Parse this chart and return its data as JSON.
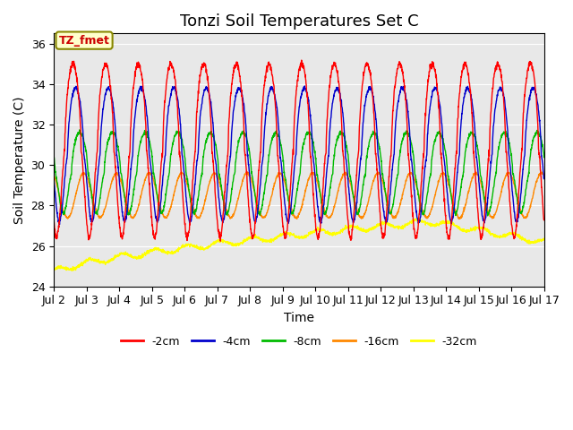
{
  "title": "Tonzi Soil Temperatures Set C",
  "xlabel": "Time",
  "ylabel": "Soil Temperature (C)",
  "ylim": [
    24,
    36.5
  ],
  "xlim": [
    0,
    15
  ],
  "xtick_labels": [
    "Jul 2",
    "Jul 3",
    "Jul 4",
    "Jul 5",
    "Jul 6",
    "Jul 7",
    "Jul 8",
    "Jul 9",
    "Jul 10",
    "Jul 11",
    "Jul 12",
    "Jul 13",
    "Jul 14",
    "Jul 15",
    "Jul 16",
    "Jul 17"
  ],
  "ytick_vals": [
    24,
    26,
    28,
    30,
    32,
    34,
    36
  ],
  "legend_labels": [
    "-2cm",
    "-4cm",
    "-8cm",
    "-16cm",
    "-32cm"
  ],
  "legend_colors": [
    "#ff0000",
    "#0000cc",
    "#00bb00",
    "#ff8800",
    "#ffff00"
  ],
  "annotation_text": "TZ_fmet",
  "annotation_box_color": "#ffffcc",
  "annotation_text_color": "#cc0000",
  "bg_color": "#e8e8e8",
  "title_fontsize": 13,
  "label_fontsize": 10,
  "tick_fontsize": 9
}
